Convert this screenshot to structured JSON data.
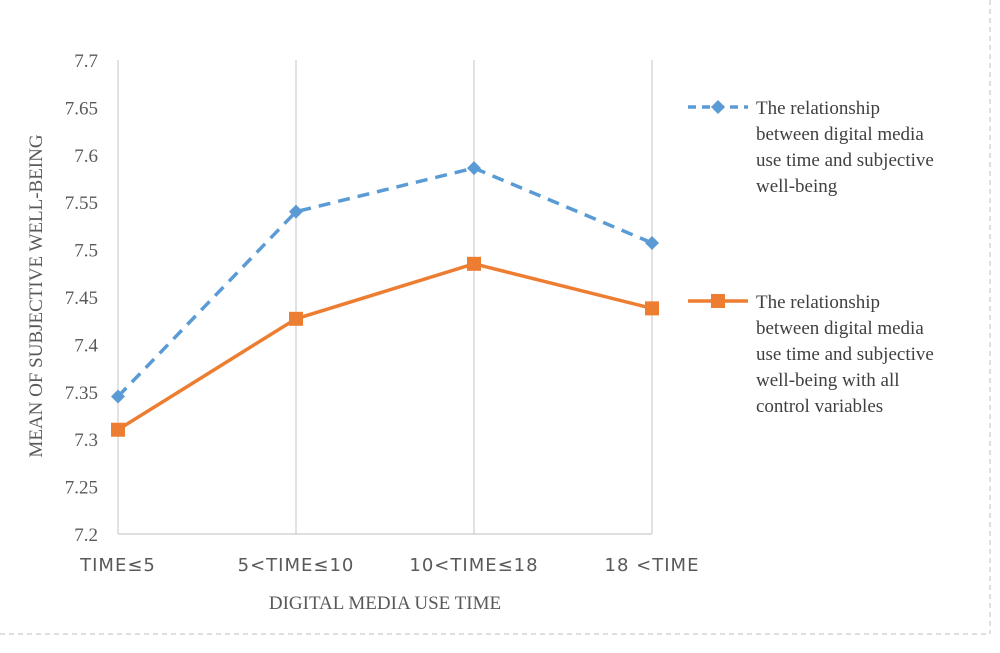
{
  "chart_data": {
    "type": "line",
    "categories": [
      "TIME≤5",
      "5<TIME≤10",
      "10<TIME≤18",
      "18 <TIME"
    ],
    "xlabel": "DIGITAL MEDIA USE TIME",
    "ylabel": "MEAN OF SUBJECTIVE WELL-BEING",
    "ylim": [
      7.2,
      7.7
    ],
    "yticks": [
      "7.2",
      "7.25",
      "7.3",
      "7.35",
      "7.4",
      "7.45",
      "7.5",
      "7.55",
      "7.6",
      "7.65",
      "7.7"
    ],
    "grid": "vertical",
    "legend_position": "right",
    "series": [
      {
        "name": "The relationship between digital media use time and subjective well-being",
        "legend_lines": [
          "The relationship",
          "between digital media",
          "use time and subjective",
          "well-being"
        ],
        "values": [
          7.345,
          7.54,
          7.586,
          7.507
        ],
        "color": "#5b9bd5",
        "style": "dashed",
        "marker": "diamond"
      },
      {
        "name": "The relationship between digital media use time and subjective well-being with all control variables",
        "legend_lines": [
          "The relationship",
          "between digital media",
          "use time and subjective",
          "well-being with all",
          "control variables"
        ],
        "values": [
          7.31,
          7.427,
          7.485,
          7.438
        ],
        "color": "#ed7d31",
        "style": "solid",
        "marker": "square"
      }
    ]
  }
}
